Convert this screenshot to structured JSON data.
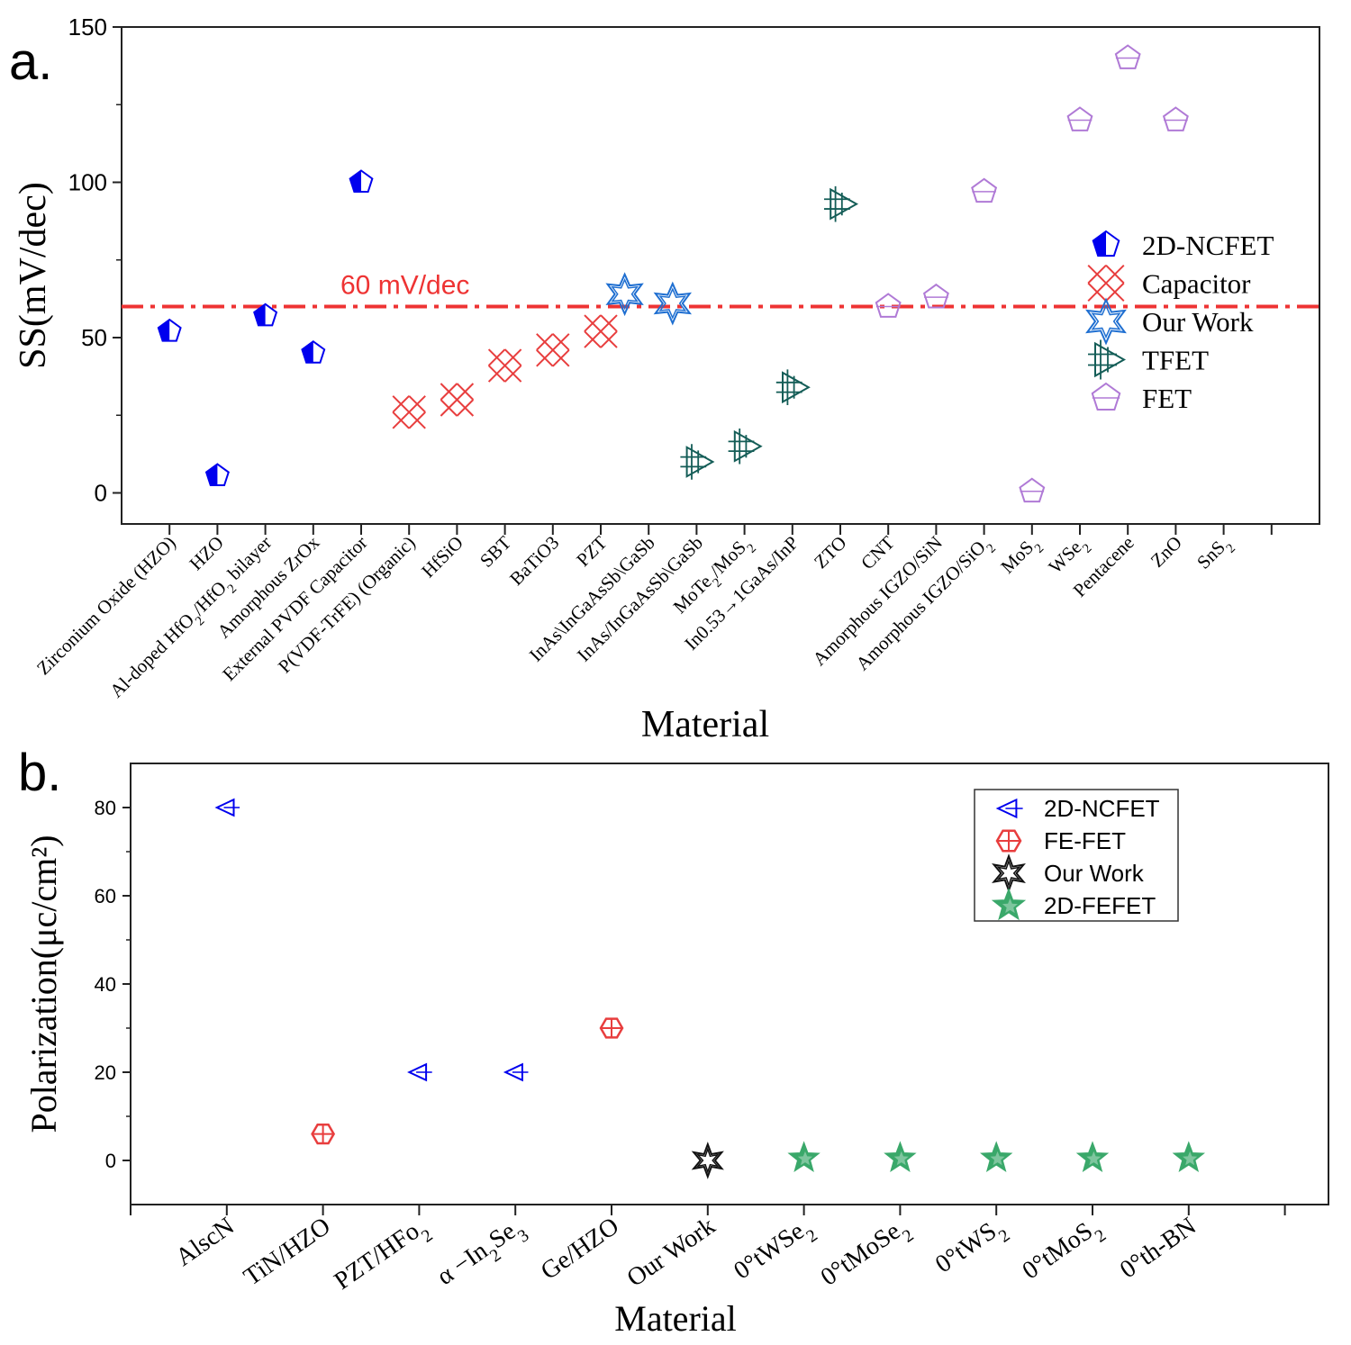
{
  "colors": {
    "ncfet_blue": "#0000ee",
    "capacitor_red": "#e83e3e",
    "ourwork_blue": "#1f6fd1",
    "tfet_teal": "#145d57",
    "fet_purple": "#b07ad6",
    "fefet_red": "#e83e3e",
    "ourwork_black": "#111111",
    "fefet2d_green": "#3aa86a",
    "ref_line": "#ee3333"
  },
  "chart_data": [
    {
      "panel_label": "a.",
      "type": "scatter",
      "xlabel": "Material",
      "ylabel": "SS(mV/dec)",
      "ylim": [
        -10,
        150
      ],
      "yticks": [
        0,
        50,
        100,
        150
      ],
      "x_slots": 25,
      "categories": [
        {
          "pre": "Zirconium Oxide (HZO)",
          "sub": "",
          "post": ""
        },
        {
          "pre": "HZO",
          "sub": "",
          "post": ""
        },
        {
          "pre": "Al-doped HfO",
          "sub": "2",
          "post": "/HfO",
          "sub2": "2",
          "post2": " bilayer"
        },
        {
          "pre": "Amorphous ZrOx",
          "sub": "",
          "post": ""
        },
        {
          "pre": "External PVDF Capacitor",
          "sub": "",
          "post": ""
        },
        {
          "pre": "P(VDF-TrFE) (Organic)",
          "sub": "",
          "post": ""
        },
        {
          "pre": "HfSiO",
          "sub": "",
          "post": ""
        },
        {
          "pre": "SBT",
          "sub": "",
          "post": ""
        },
        {
          "pre": "BaTiO3",
          "sub": "",
          "post": ""
        },
        {
          "pre": "PZT",
          "sub": "",
          "post": ""
        },
        {
          "pre": "InAs\\InGaAsSb\\GaSb",
          "sub": "",
          "post": ""
        },
        {
          "pre": "InAs/InGaAsSb\\GaSb",
          "sub": "",
          "post": ""
        },
        {
          "pre": "MoTe",
          "sub": "2",
          "post": "/MoS",
          "sub2": "2",
          "post2": ""
        },
        {
          "pre": "In0.53→1GaAs/InP",
          "sub": "",
          "post": ""
        },
        {
          "pre": "ZTO",
          "sub": "",
          "post": ""
        },
        {
          "pre": "CNT",
          "sub": "",
          "post": ""
        },
        {
          "pre": "Amorphous IGZO/SiN",
          "sub": "",
          "post": ""
        },
        {
          "pre": "Amorphous IGZO/SiO",
          "sub": "2",
          "post": ""
        },
        {
          "pre": "MoS",
          "sub": "2",
          "post": ""
        },
        {
          "pre": "WSe",
          "sub": "2",
          "post": ""
        },
        {
          "pre": "Pentacene",
          "sub": "",
          "post": ""
        },
        {
          "pre": "ZnO",
          "sub": "",
          "post": ""
        },
        {
          "pre": "SnS",
          "sub": "2",
          "post": ""
        }
      ],
      "reference_line": {
        "value": 60,
        "label": "60 mV/dec"
      },
      "series": [
        {
          "name": "2D-NCFET",
          "marker": "pentagon-half",
          "color_key": "ncfet_blue",
          "x": [
            1,
            2,
            3,
            4,
            5
          ],
          "y": [
            52,
            5.5,
            57,
            45,
            100
          ]
        },
        {
          "name": "Capacitor",
          "marker": "x-cross",
          "color_key": "capacitor_red",
          "x": [
            6,
            7,
            8,
            9,
            10
          ],
          "y": [
            26,
            30,
            41,
            46,
            52
          ]
        },
        {
          "name": "Our Work",
          "marker": "star6",
          "color_key": "ourwork_blue",
          "x": [
            10.5,
            11.5
          ],
          "y": [
            64,
            61
          ]
        },
        {
          "name": "TFET",
          "marker": "tri-hash",
          "color_key": "tfet_teal",
          "x": [
            12,
            13,
            14,
            15
          ],
          "y": [
            10,
            15,
            34,
            93
          ]
        },
        {
          "name": "FET",
          "marker": "pentagon-open",
          "color_key": "fet_purple",
          "x": [
            16,
            17,
            18,
            19,
            20,
            21,
            22
          ],
          "y": [
            60,
            63,
            97,
            0.5,
            120,
            140,
            120
          ]
        }
      ],
      "legend": {
        "position": "right"
      }
    },
    {
      "panel_label": "b.",
      "type": "scatter",
      "xlabel": "Material",
      "ylabel": "Polarization(μc/cm²)",
      "ylim": [
        -10,
        90
      ],
      "yticks": [
        0,
        20,
        40,
        60,
        80
      ],
      "x_slots": 12,
      "categories": [
        {
          "pre": "AlscN",
          "sub": "",
          "post": ""
        },
        {
          "pre": "TiN/HZO",
          "sub": "",
          "post": ""
        },
        {
          "pre": "PZT/HFo",
          "sub": "2",
          "post": ""
        },
        {
          "pre": "α −In",
          "sub": "2",
          "post": "Se",
          "sub2": "3",
          "post2": ""
        },
        {
          "pre": "Ge/HZO",
          "sub": "",
          "post": ""
        },
        {
          "pre": "Our Work",
          "sub": "",
          "post": ""
        },
        {
          "pre": "0°tWSe",
          "sub": "2",
          "post": ""
        },
        {
          "pre": "0°tMoSe",
          "sub": "2",
          "post": ""
        },
        {
          "pre": "0°tWS",
          "sub": "2",
          "post": ""
        },
        {
          "pre": "0°tMoS",
          "sub": "2",
          "post": ""
        },
        {
          "pre": "0°th-BN",
          "sub": "",
          "post": ""
        }
      ],
      "series": [
        {
          "name": "2D-NCFET",
          "marker": "tri-left",
          "color_key": "ncfet_blue",
          "x": [
            1,
            3,
            4
          ],
          "y": [
            80,
            20,
            20
          ]
        },
        {
          "name": "FE-FET",
          "marker": "hex-cross",
          "color_key": "fefet_red",
          "x": [
            2,
            5
          ],
          "y": [
            6,
            30
          ]
        },
        {
          "name": "Our Work",
          "marker": "star6-black",
          "color_key": "ourwork_black",
          "x": [
            6
          ],
          "y": [
            0
          ]
        },
        {
          "name": "2D-FEFET",
          "marker": "star5-half",
          "color_key": "fefet2d_green",
          "x": [
            7,
            8,
            9,
            10,
            11
          ],
          "y": [
            0.5,
            0.5,
            0.5,
            0.5,
            0.5
          ]
        }
      ],
      "legend": {
        "position": "top-right"
      }
    }
  ]
}
